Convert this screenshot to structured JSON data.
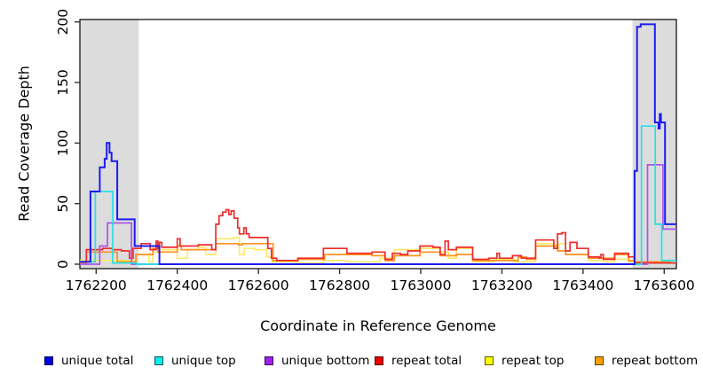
{
  "figure": {
    "background": "#ffffff"
  },
  "chart_data": {
    "type": "line",
    "subtype": "step",
    "title": "",
    "xlabel": "Coordinate in Reference Genome",
    "ylabel": "Read Coverage Depth",
    "xlim": [
      1762160,
      1763630
    ],
    "ylim": [
      0,
      202
    ],
    "xticks": [
      1762200,
      1762400,
      1762600,
      1762800,
      1763000,
      1763200,
      1763400,
      1763600
    ],
    "yticks": [
      0,
      50,
      100,
      150,
      200
    ],
    "grid": false,
    "legend_position": "bottom",
    "shaded_regions": [
      {
        "x0": 1762160,
        "x1": 1762305,
        "color": "#dcdcdc"
      },
      {
        "x0": 1763522,
        "x1": 1763630,
        "color": "#dcdcdc"
      }
    ],
    "series": [
      {
        "name": "unique total",
        "line_color": "#1c1cee",
        "legend_color": "#0000ee",
        "points": [
          [
            1762160,
            2
          ],
          [
            1762186,
            60
          ],
          [
            1762209,
            80
          ],
          [
            1762221,
            87
          ],
          [
            1762226,
            100
          ],
          [
            1762233,
            92
          ],
          [
            1762238,
            85
          ],
          [
            1762252,
            37
          ],
          [
            1762295,
            15
          ],
          [
            1762356,
            0
          ],
          [
            1763527,
            77
          ],
          [
            1763533,
            196
          ],
          [
            1763542,
            198
          ],
          [
            1763577,
            117
          ],
          [
            1763586,
            112
          ],
          [
            1763589,
            124
          ],
          [
            1763592,
            117
          ],
          [
            1763602,
            33
          ]
        ]
      },
      {
        "name": "unique top",
        "line_color": "#22e2e8",
        "legend_color": "#00eeee",
        "points": [
          [
            1762160,
            2
          ],
          [
            1762198,
            60
          ],
          [
            1762241,
            1
          ],
          [
            1762300,
            0
          ],
          [
            1763544,
            114
          ],
          [
            1763578,
            33
          ],
          [
            1763594,
            3
          ]
        ]
      },
      {
        "name": "unique bottom",
        "line_color": "#aa55e8",
        "legend_color": "#a020f0",
        "points": [
          [
            1762160,
            0
          ],
          [
            1762209,
            15
          ],
          [
            1762228,
            34
          ],
          [
            1762287,
            0
          ],
          [
            1763559,
            82
          ],
          [
            1763597,
            29
          ]
        ]
      },
      {
        "name": "repeat total",
        "line_color": "#ee2c2c",
        "legend_color": "#ee0000",
        "points": [
          [
            1762160,
            2
          ],
          [
            1762176,
            12
          ],
          [
            1762216,
            13
          ],
          [
            1762240,
            12
          ],
          [
            1762262,
            11
          ],
          [
            1762282,
            5
          ],
          [
            1762291,
            13
          ],
          [
            1762311,
            17
          ],
          [
            1762333,
            12
          ],
          [
            1762348,
            19
          ],
          [
            1762352,
            13
          ],
          [
            1762356,
            18
          ],
          [
            1762362,
            14
          ],
          [
            1762400,
            21
          ],
          [
            1762407,
            15
          ],
          [
            1762452,
            16
          ],
          [
            1762485,
            12
          ],
          [
            1762495,
            33
          ],
          [
            1762503,
            40
          ],
          [
            1762512,
            43
          ],
          [
            1762520,
            45
          ],
          [
            1762527,
            41
          ],
          [
            1762533,
            44
          ],
          [
            1762540,
            38
          ],
          [
            1762549,
            30
          ],
          [
            1762553,
            25
          ],
          [
            1762564,
            30
          ],
          [
            1762570,
            25
          ],
          [
            1762577,
            22
          ],
          [
            1762623,
            13
          ],
          [
            1762632,
            5
          ],
          [
            1762645,
            3
          ],
          [
            1762697,
            5
          ],
          [
            1762760,
            13
          ],
          [
            1762818,
            9
          ],
          [
            1762880,
            10
          ],
          [
            1762912,
            4
          ],
          [
            1762930,
            9
          ],
          [
            1762950,
            8
          ],
          [
            1762968,
            11
          ],
          [
            1762998,
            15
          ],
          [
            1763030,
            14
          ],
          [
            1763048,
            8
          ],
          [
            1763060,
            19
          ],
          [
            1763068,
            12
          ],
          [
            1763088,
            14
          ],
          [
            1763128,
            4
          ],
          [
            1763168,
            5
          ],
          [
            1763188,
            9
          ],
          [
            1763194,
            5
          ],
          [
            1763226,
            7
          ],
          [
            1763248,
            5
          ],
          [
            1763283,
            20
          ],
          [
            1763328,
            13
          ],
          [
            1763337,
            25
          ],
          [
            1763348,
            26
          ],
          [
            1763357,
            11
          ],
          [
            1763368,
            18
          ],
          [
            1763385,
            13
          ],
          [
            1763413,
            6
          ],
          [
            1763440,
            5
          ],
          [
            1763444,
            8
          ],
          [
            1763450,
            4
          ],
          [
            1763478,
            9
          ],
          [
            1763512,
            6
          ],
          [
            1763527,
            1
          ]
        ]
      },
      {
        "name": "repeat top",
        "line_color": "#ffe96a",
        "legend_color": "#ffff00",
        "points": [
          [
            1762160,
            3
          ],
          [
            1762298,
            8
          ],
          [
            1762330,
            2
          ],
          [
            1762340,
            10
          ],
          [
            1762363,
            12
          ],
          [
            1762400,
            5
          ],
          [
            1762425,
            12
          ],
          [
            1762452,
            14
          ],
          [
            1762470,
            8
          ],
          [
            1762495,
            21
          ],
          [
            1762540,
            22
          ],
          [
            1762553,
            8
          ],
          [
            1762565,
            13
          ],
          [
            1762590,
            12
          ],
          [
            1762620,
            6
          ],
          [
            1762633,
            2
          ],
          [
            1762697,
            1
          ],
          [
            1762760,
            3
          ],
          [
            1762820,
            2
          ],
          [
            1762900,
            5
          ],
          [
            1762935,
            12
          ],
          [
            1762998,
            13
          ],
          [
            1763048,
            10
          ],
          [
            1763068,
            5
          ],
          [
            1763088,
            13
          ],
          [
            1763128,
            2
          ],
          [
            1763180,
            4
          ],
          [
            1763230,
            2
          ],
          [
            1763283,
            17
          ],
          [
            1763328,
            13
          ],
          [
            1763340,
            17
          ],
          [
            1763357,
            8
          ],
          [
            1763413,
            3
          ],
          [
            1763450,
            2
          ],
          [
            1763478,
            4
          ],
          [
            1763512,
            2
          ],
          [
            1763527,
            1
          ]
        ]
      },
      {
        "name": "repeat bottom",
        "line_color": "#ff9120",
        "legend_color": "#ffa000",
        "points": [
          [
            1762160,
            1
          ],
          [
            1762176,
            10
          ],
          [
            1762252,
            2
          ],
          [
            1762298,
            8
          ],
          [
            1762340,
            13
          ],
          [
            1762352,
            10
          ],
          [
            1762400,
            15
          ],
          [
            1762410,
            12
          ],
          [
            1762495,
            17
          ],
          [
            1762551,
            16
          ],
          [
            1762560,
            17
          ],
          [
            1762636,
            3
          ],
          [
            1762697,
            4
          ],
          [
            1762763,
            8
          ],
          [
            1762880,
            7
          ],
          [
            1762912,
            3
          ],
          [
            1762935,
            7
          ],
          [
            1762998,
            10
          ],
          [
            1763048,
            7
          ],
          [
            1763088,
            8
          ],
          [
            1763128,
            3
          ],
          [
            1763240,
            6
          ],
          [
            1763260,
            4
          ],
          [
            1763283,
            15
          ],
          [
            1763337,
            11
          ],
          [
            1763357,
            8
          ],
          [
            1763413,
            5
          ],
          [
            1763478,
            8
          ],
          [
            1763512,
            3
          ],
          [
            1763527,
            2
          ],
          [
            1763615,
            3
          ]
        ]
      }
    ]
  }
}
